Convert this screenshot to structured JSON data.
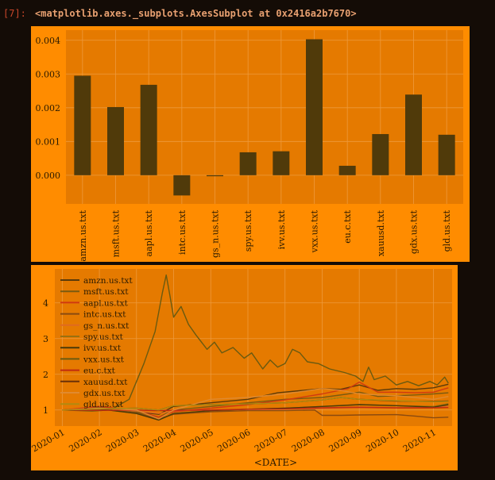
{
  "cell": {
    "prompt": "[7]:",
    "output": "<matplotlib.axes._subplots.AxesSubplot at 0x2416a2b7670>"
  },
  "colors": {
    "page_bg": "#140c06",
    "figure_bg": "#ff8c00",
    "axes_bg": "#e57a00",
    "bar": "#503a0a",
    "grid": "#ee9a3c",
    "text": "#2a1a00"
  },
  "chart_data": [
    {
      "type": "bar",
      "categories": [
        "amzn.us.txt",
        "msft.us.txt",
        "aapl.us.txt",
        "intc.us.txt",
        "gs_n.us.txt",
        "spy.us.txt",
        "ivv.us.txt",
        "vxx.us.txt",
        "eu.c.txt",
        "xauusd.txt",
        "gdx.us.txt",
        "gld.us.txt"
      ],
      "values": [
        0.00295,
        0.00202,
        0.00268,
        -0.0006,
        -3e-05,
        0.00068,
        0.00071,
        0.00403,
        0.00028,
        0.00122,
        0.00239,
        0.0012
      ],
      "yticks": [
        "0.000",
        "0.001",
        "0.002",
        "0.003",
        "0.004"
      ],
      "ytick_values": [
        0,
        0.001,
        0.002,
        0.003,
        0.004
      ],
      "ylim": [
        -0.00085,
        0.0043
      ],
      "grid": true,
      "legend": false
    },
    {
      "type": "line",
      "xlabel": "<DATE>",
      "xticks": [
        "2020-01",
        "2020-02",
        "2020-03",
        "2020-04",
        "2020-05",
        "2020-06",
        "2020-07",
        "2020-08",
        "2020-09",
        "2020-10",
        "2020-11"
      ],
      "yticks": [
        "1",
        "2",
        "3",
        "4"
      ],
      "ytick_values": [
        1,
        2,
        3,
        4
      ],
      "ylim": [
        0.55,
        4.95
      ],
      "xlim_months": [
        -0.2,
        10.5
      ],
      "legend_position": "upper-left",
      "grid": true,
      "series": [
        {
          "name": "amzn.us.txt",
          "color": "#5a3a0a",
          "points": [
            [
              0,
              1
            ],
            [
              1,
              1.04
            ],
            [
              2,
              0.95
            ],
            [
              2.6,
              0.88
            ],
            [
              3,
              1.1
            ],
            [
              4,
              1.2
            ],
            [
              5,
              1.3
            ],
            [
              5.8,
              1.48
            ],
            [
              6.5,
              1.55
            ],
            [
              7,
              1.6
            ],
            [
              7.5,
              1.58
            ],
            [
              8,
              1.7
            ],
            [
              8.5,
              1.55
            ],
            [
              9,
              1.6
            ],
            [
              9.5,
              1.58
            ],
            [
              10,
              1.62
            ],
            [
              10.4,
              1.72
            ]
          ]
        },
        {
          "name": "msft.us.txt",
          "color": "#7a5a10",
          "points": [
            [
              0,
              1
            ],
            [
              1,
              1.08
            ],
            [
              2,
              0.95
            ],
            [
              2.6,
              0.8
            ],
            [
              3,
              1.0
            ],
            [
              4,
              1.1
            ],
            [
              5,
              1.2
            ],
            [
              6,
              1.3
            ],
            [
              7,
              1.35
            ],
            [
              7.7,
              1.45
            ],
            [
              8,
              1.5
            ],
            [
              8.5,
              1.38
            ],
            [
              9,
              1.4
            ],
            [
              9.5,
              1.42
            ],
            [
              10,
              1.45
            ],
            [
              10.4,
              1.48
            ]
          ]
        },
        {
          "name": "aapl.us.txt",
          "color": "#d03a10",
          "points": [
            [
              0,
              1
            ],
            [
              1,
              1.1
            ],
            [
              2,
              0.98
            ],
            [
              2.6,
              0.8
            ],
            [
              3,
              0.95
            ],
            [
              4,
              1.05
            ],
            [
              5,
              1.15
            ],
            [
              6,
              1.28
            ],
            [
              7,
              1.45
            ],
            [
              7.7,
              1.6
            ],
            [
              8,
              1.78
            ],
            [
              8.5,
              1.5
            ],
            [
              9,
              1.5
            ],
            [
              9.5,
              1.48
            ],
            [
              10,
              1.5
            ],
            [
              10.4,
              1.62
            ]
          ]
        },
        {
          "name": "intc.us.txt",
          "color": "#8a4a10",
          "points": [
            [
              0,
              1
            ],
            [
              1,
              1.02
            ],
            [
              2,
              0.92
            ],
            [
              2.6,
              0.75
            ],
            [
              3,
              0.88
            ],
            [
              4,
              0.95
            ],
            [
              5,
              0.98
            ],
            [
              6,
              0.98
            ],
            [
              6.8,
              1.0
            ],
            [
              7,
              0.85
            ],
            [
              7.5,
              0.85
            ],
            [
              8,
              0.86
            ],
            [
              9,
              0.87
            ],
            [
              9.5,
              0.83
            ],
            [
              10,
              0.78
            ],
            [
              10.4,
              0.8
            ]
          ]
        },
        {
          "name": "gs_n.us.txt",
          "color": "#e06a20",
          "points": [
            [
              0,
              1
            ],
            [
              1,
              1.02
            ],
            [
              2,
              0.97
            ],
            [
              2.6,
              0.9
            ],
            [
              3,
              0.98
            ],
            [
              4,
              1.0
            ],
            [
              5,
              1.02
            ],
            [
              6,
              1.03
            ],
            [
              7,
              1.04
            ],
            [
              8,
              1.06
            ],
            [
              9,
              1.06
            ],
            [
              10,
              1.08
            ],
            [
              10.4,
              1.1
            ]
          ]
        },
        {
          "name": "spy.us.txt",
          "color": "#9a7010",
          "points": [
            [
              0,
              1
            ],
            [
              1,
              1.03
            ],
            [
              2,
              0.9
            ],
            [
              2.6,
              0.72
            ],
            [
              3,
              0.9
            ],
            [
              4,
              0.98
            ],
            [
              5,
              1.02
            ],
            [
              6,
              1.05
            ],
            [
              7,
              1.1
            ],
            [
              8,
              1.15
            ],
            [
              9,
              1.12
            ],
            [
              10,
              1.1
            ],
            [
              10.4,
              1.18
            ]
          ]
        },
        {
          "name": "ivv.us.txt",
          "color": "#4a3a08",
          "points": [
            [
              0,
              1
            ],
            [
              1,
              1.03
            ],
            [
              2,
              0.9
            ],
            [
              2.6,
              0.72
            ],
            [
              3,
              0.9
            ],
            [
              4,
              0.98
            ],
            [
              5,
              1.02
            ],
            [
              6,
              1.05
            ],
            [
              7,
              1.1
            ],
            [
              8,
              1.15
            ],
            [
              9,
              1.12
            ],
            [
              10,
              1.08
            ],
            [
              10.4,
              1.15
            ]
          ]
        },
        {
          "name": "vxx.us.txt",
          "color": "#6a5a10",
          "points": [
            [
              0,
              1
            ],
            [
              0.8,
              0.97
            ],
            [
              1.3,
              1.0
            ],
            [
              1.8,
              1.3
            ],
            [
              2.2,
              2.3
            ],
            [
              2.5,
              3.2
            ],
            [
              2.7,
              4.3
            ],
            [
              2.8,
              4.78
            ],
            [
              2.9,
              4.2
            ],
            [
              3.0,
              3.6
            ],
            [
              3.2,
              3.9
            ],
            [
              3.4,
              3.4
            ],
            [
              3.6,
              3.1
            ],
            [
              3.9,
              2.7
            ],
            [
              4.1,
              2.9
            ],
            [
              4.3,
              2.6
            ],
            [
              4.6,
              2.75
            ],
            [
              4.9,
              2.45
            ],
            [
              5.1,
              2.6
            ],
            [
              5.4,
              2.15
            ],
            [
              5.6,
              2.4
            ],
            [
              5.8,
              2.2
            ],
            [
              6.0,
              2.3
            ],
            [
              6.2,
              2.7
            ],
            [
              6.4,
              2.6
            ],
            [
              6.6,
              2.35
            ],
            [
              6.9,
              2.3
            ],
            [
              7.2,
              2.15
            ],
            [
              7.6,
              2.05
            ],
            [
              7.9,
              1.95
            ],
            [
              8.1,
              1.8
            ],
            [
              8.25,
              2.2
            ],
            [
              8.4,
              1.85
            ],
            [
              8.7,
              1.95
            ],
            [
              9.0,
              1.7
            ],
            [
              9.3,
              1.8
            ],
            [
              9.6,
              1.68
            ],
            [
              9.9,
              1.8
            ],
            [
              10.1,
              1.7
            ],
            [
              10.3,
              1.92
            ],
            [
              10.4,
              1.75
            ]
          ]
        },
        {
          "name": "eu.c.txt",
          "color": "#c02a10",
          "points": [
            [
              0,
              1
            ],
            [
              1,
              0.99
            ],
            [
              2,
              1.0
            ],
            [
              2.5,
              0.98
            ],
            [
              3,
              0.99
            ],
            [
              4,
              1.0
            ],
            [
              5,
              1.02
            ],
            [
              6,
              1.03
            ],
            [
              7,
              1.06
            ],
            [
              8,
              1.08
            ],
            [
              9,
              1.06
            ],
            [
              10,
              1.06
            ],
            [
              10.4,
              1.07
            ]
          ]
        },
        {
          "name": "xauusd.txt",
          "color": "#6a3008",
          "points": [
            [
              0,
              1
            ],
            [
              1,
              1.03
            ],
            [
              2,
              1.05
            ],
            [
              2.6,
              1.0
            ],
            [
              3,
              1.12
            ],
            [
              4,
              1.15
            ],
            [
              5,
              1.17
            ],
            [
              6,
              1.2
            ],
            [
              7,
              1.28
            ],
            [
              7.5,
              1.35
            ],
            [
              8,
              1.3
            ],
            [
              9,
              1.25
            ],
            [
              10,
              1.24
            ],
            [
              10.4,
              1.25
            ]
          ]
        },
        {
          "name": "gdx.us.txt",
          "color": "#e08a30",
          "points": [
            [
              0,
              1
            ],
            [
              1,
              1.05
            ],
            [
              2,
              1.0
            ],
            [
              2.6,
              0.75
            ],
            [
              3,
              1.0
            ],
            [
              4,
              1.3
            ],
            [
              5,
              1.35
            ],
            [
              6,
              1.45
            ],
            [
              7,
              1.6
            ],
            [
              7.5,
              1.55
            ],
            [
              8,
              1.45
            ],
            [
              9,
              1.4
            ],
            [
              10,
              1.3
            ],
            [
              10.4,
              1.38
            ]
          ]
        },
        {
          "name": "gld.us.txt",
          "color": "#b08a10",
          "points": [
            [
              0,
              1
            ],
            [
              1,
              1.03
            ],
            [
              2,
              1.05
            ],
            [
              2.6,
              1.0
            ],
            [
              3,
              1.12
            ],
            [
              4,
              1.15
            ],
            [
              5,
              1.17
            ],
            [
              6,
              1.2
            ],
            [
              7,
              1.28
            ],
            [
              7.5,
              1.35
            ],
            [
              8,
              1.3
            ],
            [
              9,
              1.26
            ],
            [
              10,
              1.23
            ],
            [
              10.4,
              1.24
            ]
          ]
        }
      ]
    }
  ]
}
